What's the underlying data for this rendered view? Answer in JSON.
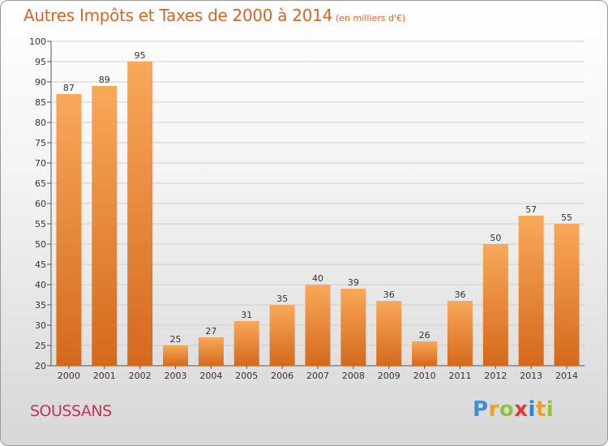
{
  "header": {
    "title": "Autres Impôts et Taxes de 2000 à 2014",
    "subtitle": "(en milliers d'€)"
  },
  "footer": {
    "commune": "SOUSSANS",
    "logo_text": "Proxiti"
  },
  "colors": {
    "bar_top": "#f9a85a",
    "bar_bottom": "#d4691c",
    "title": "#d0672a",
    "commune": "#c2335a",
    "grid": "#cfcfcf",
    "logo_letters": [
      "#3f8fd0",
      "#f0a020",
      "#8cc63f",
      "#e53935",
      "#1e88e5",
      "#f0a020",
      "#8cc63f"
    ]
  },
  "chart_data": {
    "type": "bar",
    "title": "Autres Impôts et Taxes de 2000 à 2014",
    "xlabel": "",
    "ylabel": "",
    "categories": [
      "2000",
      "2001",
      "2002",
      "2003",
      "2004",
      "2005",
      "2006",
      "2007",
      "2008",
      "2009",
      "2010",
      "2011",
      "2012",
      "2013",
      "2014"
    ],
    "values": [
      87,
      89,
      95,
      25,
      27,
      31,
      35,
      40,
      39,
      36,
      26,
      36,
      50,
      57,
      55
    ],
    "ylim": [
      20,
      100
    ],
    "yticks": [
      20,
      25,
      30,
      35,
      40,
      45,
      50,
      55,
      60,
      65,
      70,
      75,
      80,
      85,
      90,
      95,
      100
    ],
    "grid": true,
    "legend": "none"
  }
}
